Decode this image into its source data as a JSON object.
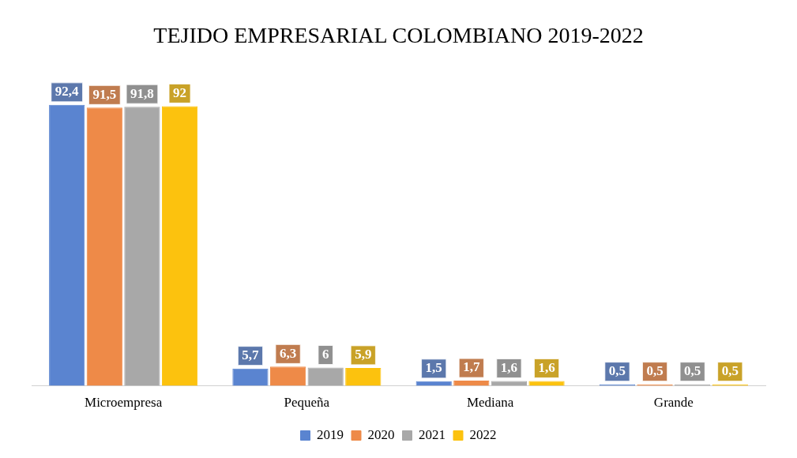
{
  "chart_data": {
    "type": "bar",
    "title": "TEJIDO EMPRESARIAL COLOMBIANO 2019-2022",
    "categories": [
      "Microempresa",
      "Pequeña",
      "Mediana",
      "Grande"
    ],
    "series": [
      {
        "name": "2019",
        "color": "#5a84d0",
        "values": [
          92.4,
          5.7,
          1.5,
          0.5
        ],
        "value_labels": [
          "92,4",
          "5,7",
          "1,5",
          "0,5"
        ]
      },
      {
        "name": "2020",
        "color": "#ee8a48",
        "values": [
          91.5,
          6.3,
          1.7,
          0.5
        ],
        "value_labels": [
          "91,5",
          "6,3",
          "1,7",
          "0,5"
        ]
      },
      {
        "name": "2021",
        "color": "#a8a8a8",
        "values": [
          91.8,
          6,
          1.6,
          0.5
        ],
        "value_labels": [
          "91,8",
          "6",
          "1,6",
          "0,5"
        ]
      },
      {
        "name": "2022",
        "color": "#fcc20e",
        "values": [
          92,
          5.9,
          1.6,
          0.5
        ],
        "value_labels": [
          "92",
          "5,9",
          "1,6",
          "0,5"
        ]
      }
    ],
    "legend": "bottom",
    "tick_labels": "x",
    "grid": false
  }
}
